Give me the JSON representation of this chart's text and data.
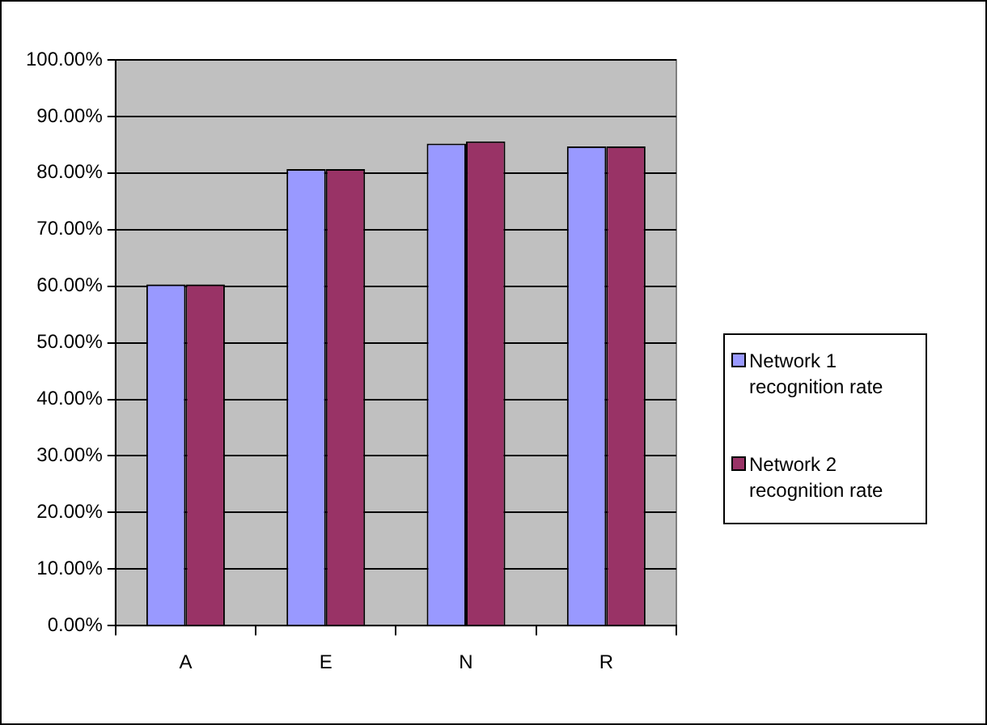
{
  "chart_data": {
    "type": "bar",
    "categories": [
      "A",
      "E",
      "N",
      "R"
    ],
    "series": [
      {
        "name": "Network 1 recognition rate",
        "color": "#9999ff",
        "values": [
          60.3,
          80.7,
          85.2,
          84.7
        ]
      },
      {
        "name": "Network 2 recognition rate",
        "color": "#993366",
        "values": [
          60.3,
          80.7,
          85.6,
          84.7
        ]
      }
    ],
    "ylim": [
      0,
      100
    ],
    "yticks": [
      {
        "value": 0,
        "label": "0.00%"
      },
      {
        "value": 10,
        "label": "10.00%"
      },
      {
        "value": 20,
        "label": "20.00%"
      },
      {
        "value": 30,
        "label": "30.00%"
      },
      {
        "value": 40,
        "label": "40.00%"
      },
      {
        "value": 50,
        "label": "50.00%"
      },
      {
        "value": 60,
        "label": "60.00%"
      },
      {
        "value": 70,
        "label": "70.00%"
      },
      {
        "value": 80,
        "label": "80.00%"
      },
      {
        "value": 90,
        "label": "90.00%"
      },
      {
        "value": 100,
        "label": "100.00%"
      }
    ],
    "grid": "y",
    "legend": "right"
  }
}
